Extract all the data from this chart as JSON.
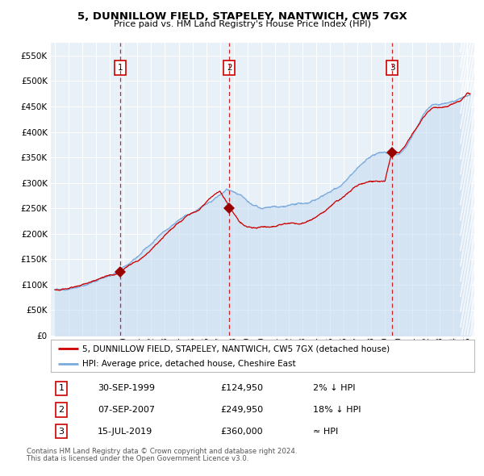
{
  "title1": "5, DUNNILLOW FIELD, STAPELEY, NANTWICH, CW5 7GX",
  "title2": "Price paid vs. HM Land Registry's House Price Index (HPI)",
  "hpi_color": "#7aaadd",
  "hpi_fill_color": "#c8ddf0",
  "price_color": "#cc0000",
  "marker_color": "#990000",
  "bg_color": "#ddeeff",
  "plot_bg": "#e8f0f8",
  "grid_color": "#ffffff",
  "sales": [
    {
      "num": 1,
      "date_decimal": 1999.75,
      "price": 124950,
      "label": "30-SEP-1999",
      "pct": "2% ↓ HPI"
    },
    {
      "num": 2,
      "date_decimal": 2007.67,
      "price": 249950,
      "label": "07-SEP-2007",
      "pct": "18% ↓ HPI"
    },
    {
      "num": 3,
      "date_decimal": 2019.54,
      "price": 360000,
      "label": "15-JUL-2019",
      "pct": "≈ HPI"
    }
  ],
  "legend_line1": "5, DUNNILLOW FIELD, STAPELEY, NANTWICH, CW5 7GX (detached house)",
  "legend_line2": "HPI: Average price, detached house, Cheshire East",
  "footnote1": "Contains HM Land Registry data © Crown copyright and database right 2024.",
  "footnote2": "This data is licensed under the Open Government Licence v3.0.",
  "ylim": [
    0,
    575000
  ],
  "yticks": [
    0,
    50000,
    100000,
    150000,
    200000,
    250000,
    300000,
    350000,
    400000,
    450000,
    500000,
    550000
  ],
  "xlim_start": 1994.7,
  "xlim_end": 2025.5,
  "xticks": [
    1995,
    1996,
    1997,
    1998,
    1999,
    2000,
    2001,
    2002,
    2003,
    2004,
    2005,
    2006,
    2007,
    2008,
    2009,
    2010,
    2011,
    2012,
    2013,
    2014,
    2015,
    2016,
    2017,
    2018,
    2019,
    2020,
    2021,
    2022,
    2023,
    2024,
    2025
  ],
  "hpi_anchors_t": [
    1995.0,
    1996.0,
    1997.0,
    1998.0,
    1999.0,
    2000.0,
    2001.0,
    2002.0,
    2003.0,
    2004.0,
    2005.0,
    2006.0,
    2007.0,
    2007.5,
    2008.0,
    2008.5,
    2009.0,
    2009.5,
    2010.0,
    2010.5,
    2011.0,
    2011.5,
    2012.0,
    2012.5,
    2013.0,
    2013.5,
    2014.0,
    2014.5,
    2015.0,
    2015.5,
    2016.0,
    2016.5,
    2017.0,
    2017.5,
    2018.0,
    2018.5,
    2019.0,
    2019.5,
    2020.0,
    2020.5,
    2021.0,
    2021.5,
    2022.0,
    2022.5,
    2023.0,
    2023.5,
    2024.0,
    2024.5,
    2025.0
  ],
  "hpi_anchors_v": [
    90000,
    95000,
    103000,
    112000,
    122000,
    138000,
    158000,
    185000,
    215000,
    238000,
    252000,
    272000,
    290000,
    300000,
    295000,
    285000,
    270000,
    262000,
    258000,
    257000,
    258000,
    258000,
    258000,
    260000,
    262000,
    264000,
    270000,
    278000,
    285000,
    295000,
    305000,
    318000,
    330000,
    342000,
    350000,
    358000,
    362000,
    360000,
    355000,
    368000,
    390000,
    415000,
    440000,
    455000,
    455000,
    458000,
    462000,
    468000,
    472000
  ],
  "price_anchors_t": [
    1995.0,
    1996.0,
    1997.0,
    1998.0,
    1999.0,
    1999.75,
    2000.5,
    2001.5,
    2002.5,
    2003.5,
    2004.5,
    2005.5,
    2006.5,
    2007.0,
    2007.67,
    2008.0,
    2008.5,
    2009.0,
    2009.5,
    2010.0,
    2010.5,
    2011.0,
    2011.5,
    2012.0,
    2012.5,
    2013.0,
    2013.5,
    2014.0,
    2014.5,
    2015.0,
    2015.5,
    2016.0,
    2016.5,
    2017.0,
    2017.5,
    2018.0,
    2018.5,
    2019.0,
    2019.54,
    2020.0,
    2020.5,
    2021.0,
    2021.5,
    2022.0,
    2022.5,
    2023.0,
    2023.5,
    2024.0,
    2024.5,
    2025.0
  ],
  "price_anchors_v": [
    90000,
    95000,
    103000,
    112000,
    122000,
    124950,
    140000,
    158000,
    183000,
    210000,
    232000,
    246000,
    268000,
    280000,
    249950,
    235000,
    220000,
    210000,
    208000,
    210000,
    212000,
    215000,
    218000,
    220000,
    222000,
    224000,
    228000,
    234000,
    242000,
    252000,
    263000,
    272000,
    282000,
    292000,
    298000,
    302000,
    300000,
    300000,
    360000,
    355000,
    368000,
    388000,
    410000,
    432000,
    448000,
    448000,
    452000,
    458000,
    462000,
    475000
  ]
}
